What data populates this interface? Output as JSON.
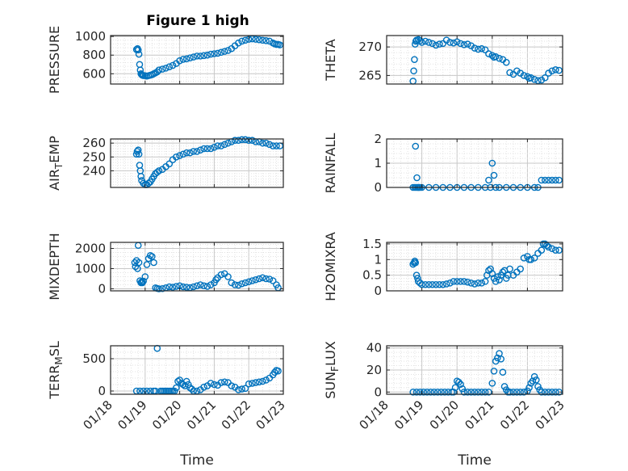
{
  "figure": {
    "title": "Figure 1 high",
    "marker_color": "#0072BD",
    "axes_color": "#262626",
    "grid_color": "#d9d9d9"
  },
  "chart_data": [
    {
      "type": "scatter",
      "ylabel": "PRESSURE",
      "xlabel": "",
      "title": "Figure 1 high",
      "xlim": [
        0,
        5
      ],
      "ylim": [
        490,
        1010
      ],
      "yticks": [
        600,
        800,
        1000
      ],
      "xtick_labels": [],
      "grid": true,
      "x": [
        0.75,
        0.78,
        0.8,
        0.82,
        0.84,
        0.86,
        0.88,
        0.9,
        0.92,
        0.95,
        1.0,
        1.05,
        1.1,
        1.15,
        1.2,
        1.25,
        1.3,
        1.35,
        1.4,
        1.5,
        1.6,
        1.7,
        1.8,
        1.9,
        2.0,
        2.1,
        2.2,
        2.3,
        2.4,
        2.5,
        2.6,
        2.7,
        2.8,
        2.9,
        3.0,
        3.1,
        3.2,
        3.3,
        3.4,
        3.5,
        3.6,
        3.7,
        3.8,
        3.9,
        4.0,
        4.1,
        4.2,
        4.3,
        4.4,
        4.5,
        4.6,
        4.7,
        4.75,
        4.8,
        4.85,
        4.9
      ],
      "y": [
        860,
        870,
        855,
        810,
        700,
        640,
        600,
        590,
        585,
        580,
        580,
        575,
        580,
        585,
        590,
        600,
        610,
        620,
        640,
        650,
        660,
        675,
        690,
        710,
        740,
        755,
        760,
        770,
        780,
        790,
        790,
        795,
        800,
        810,
        815,
        820,
        830,
        840,
        850,
        870,
        900,
        930,
        950,
        960,
        970,
        975,
        970,
        965,
        960,
        955,
        950,
        930,
        920,
        915,
        915,
        910
      ]
    },
    {
      "type": "scatter",
      "ylabel": "THETA",
      "xlabel": "",
      "xlim": [
        0,
        5
      ],
      "ylim": [
        263.5,
        272
      ],
      "yticks": [
        265,
        270
      ],
      "xtick_labels": [],
      "grid": true,
      "x": [
        0.75,
        0.77,
        0.79,
        0.81,
        0.83,
        0.85,
        0.9,
        0.95,
        1.0,
        1.1,
        1.2,
        1.3,
        1.4,
        1.5,
        1.6,
        1.7,
        1.8,
        1.9,
        2.0,
        2.1,
        2.2,
        2.3,
        2.4,
        2.5,
        2.6,
        2.7,
        2.8,
        2.9,
        3.0,
        3.05,
        3.1,
        3.2,
        3.3,
        3.4,
        3.5,
        3.6,
        3.7,
        3.8,
        3.9,
        4.0,
        4.05,
        4.1,
        4.2,
        4.3,
        4.4,
        4.5,
        4.6,
        4.7,
        4.8,
        4.9
      ],
      "y": [
        264,
        265.8,
        267.8,
        270.5,
        271,
        271.2,
        271.3,
        271.1,
        270.8,
        271,
        270.8,
        270.6,
        270.3,
        270.5,
        270.6,
        271.2,
        270.8,
        270.7,
        270.9,
        270.6,
        270.4,
        270.5,
        270.2,
        269.8,
        269.6,
        269.7,
        269.5,
        268.8,
        268.5,
        268.2,
        268.3,
        268,
        267.8,
        267.3,
        265.5,
        265.2,
        265.8,
        265.4,
        265,
        264.8,
        264.5,
        264.6,
        264.3,
        264.1,
        264.2,
        264.6,
        265.4,
        265.8,
        266,
        265.9
      ]
    },
    {
      "type": "scatter",
      "ylabel": "AIR_TEMP",
      "xlabel": "",
      "xlim": [
        0,
        5
      ],
      "ylim": [
        228,
        263
      ],
      "yticks": [
        240,
        250,
        260
      ],
      "xtick_labels": [],
      "grid": true,
      "x": [
        0.75,
        0.77,
        0.8,
        0.82,
        0.84,
        0.86,
        0.88,
        0.9,
        0.95,
        1.0,
        1.05,
        1.1,
        1.15,
        1.2,
        1.25,
        1.3,
        1.35,
        1.4,
        1.5,
        1.6,
        1.7,
        1.8,
        1.9,
        2.0,
        2.1,
        2.2,
        2.3,
        2.4,
        2.5,
        2.6,
        2.7,
        2.8,
        2.9,
        3.0,
        3.1,
        3.2,
        3.3,
        3.4,
        3.5,
        3.6,
        3.7,
        3.8,
        3.9,
        4.0,
        4.1,
        4.2,
        4.3,
        4.4,
        4.5,
        4.6,
        4.7,
        4.8,
        4.9
      ],
      "y": [
        252,
        254,
        255,
        252,
        244,
        240,
        236,
        233,
        231,
        230,
        230,
        231,
        232,
        234,
        236,
        238,
        239,
        240,
        241,
        243,
        245,
        248,
        250,
        251,
        252,
        253,
        253,
        254,
        254,
        255,
        256,
        256,
        256,
        257,
        258,
        258,
        259,
        260,
        261,
        262,
        262,
        262.5,
        262.5,
        262,
        262,
        261,
        261,
        260,
        260,
        259,
        258,
        258,
        258
      ]
    },
    {
      "type": "scatter",
      "ylabel": "RAINFALL",
      "xlabel": "",
      "xlim": [
        0,
        5
      ],
      "ylim": [
        0,
        2
      ],
      "yticks": [
        0,
        1,
        2
      ],
      "xtick_labels": [],
      "grid": true,
      "x": [
        0.75,
        0.8,
        0.82,
        0.84,
        0.86,
        0.88,
        0.9,
        0.92,
        0.95,
        1.0,
        1.2,
        1.4,
        1.6,
        1.8,
        2.0,
        2.2,
        2.4,
        2.6,
        2.8,
        2.9,
        2.95,
        3.0,
        3.05,
        3.1,
        3.2,
        3.4,
        3.6,
        3.8,
        4.0,
        4.2,
        4.3,
        4.4,
        4.5,
        4.6,
        4.7,
        4.8,
        4.9
      ],
      "y": [
        0,
        0,
        1.7,
        0,
        0.4,
        0,
        0,
        0,
        0,
        0,
        0,
        0,
        0,
        0,
        0,
        0,
        0,
        0,
        0,
        0.3,
        0,
        1.0,
        0.5,
        0,
        0,
        0,
        0,
        0,
        0,
        0,
        0,
        0.3,
        0.3,
        0.3,
        0.3,
        0.3,
        0.3
      ]
    },
    {
      "type": "scatter",
      "ylabel": "MIXDEPTH",
      "xlabel": "",
      "xlim": [
        0,
        5
      ],
      "ylim": [
        -100,
        2300
      ],
      "yticks": [
        0,
        1000,
        2000
      ],
      "xtick_labels": [],
      "grid": true,
      "x": [
        0.7,
        0.72,
        0.75,
        0.78,
        0.8,
        0.82,
        0.85,
        0.88,
        0.9,
        0.92,
        0.95,
        1.0,
        1.05,
        1.1,
        1.15,
        1.2,
        1.25,
        1.3,
        1.35,
        1.4,
        1.5,
        1.6,
        1.7,
        1.8,
        1.9,
        2.0,
        2.1,
        2.2,
        2.3,
        2.4,
        2.5,
        2.6,
        2.7,
        2.8,
        2.9,
        3.0,
        3.05,
        3.1,
        3.2,
        3.3,
        3.4,
        3.5,
        3.6,
        3.7,
        3.8,
        3.9,
        4.0,
        4.1,
        4.2,
        4.3,
        4.4,
        4.5,
        4.6,
        4.7,
        4.8,
        4.85
      ],
      "y": [
        1300,
        1100,
        1400,
        1000,
        2150,
        1300,
        400,
        300,
        350,
        300,
        380,
        600,
        1200,
        1500,
        1650,
        1600,
        1300,
        50,
        20,
        0,
        10,
        50,
        100,
        80,
        120,
        150,
        100,
        80,
        60,
        100,
        150,
        200,
        150,
        120,
        200,
        300,
        450,
        550,
        700,
        750,
        600,
        300,
        200,
        180,
        250,
        300,
        350,
        400,
        450,
        500,
        550,
        500,
        480,
        400,
        200,
        50
      ]
    },
    {
      "type": "scatter",
      "ylabel": "H2OMIXRA",
      "xlabel": "",
      "xlim": [
        0,
        5
      ],
      "ylim": [
        0,
        1.55
      ],
      "yticks": [
        0,
        0.5,
        1,
        1.5
      ],
      "xtick_labels": [],
      "grid": true,
      "x": [
        0.75,
        0.78,
        0.8,
        0.82,
        0.85,
        0.88,
        0.9,
        0.95,
        1.0,
        1.1,
        1.2,
        1.3,
        1.4,
        1.5,
        1.6,
        1.7,
        1.8,
        1.9,
        2.0,
        2.1,
        2.2,
        2.3,
        2.4,
        2.5,
        2.6,
        2.7,
        2.8,
        2.85,
        2.9,
        2.95,
        3.0,
        3.05,
        3.1,
        3.15,
        3.2,
        3.25,
        3.3,
        3.35,
        3.4,
        3.45,
        3.5,
        3.6,
        3.7,
        3.8,
        3.9,
        4.0,
        4.05,
        4.1,
        4.2,
        4.3,
        4.4,
        4.45,
        4.5,
        4.55,
        4.6,
        4.7,
        4.8,
        4.9
      ],
      "y": [
        0.85,
        0.9,
        0.95,
        0.9,
        0.5,
        0.4,
        0.3,
        0.25,
        0.2,
        0.2,
        0.2,
        0.2,
        0.2,
        0.2,
        0.2,
        0.22,
        0.25,
        0.3,
        0.3,
        0.3,
        0.3,
        0.28,
        0.25,
        0.22,
        0.25,
        0.25,
        0.3,
        0.5,
        0.65,
        0.7,
        0.55,
        0.4,
        0.3,
        0.45,
        0.35,
        0.5,
        0.6,
        0.65,
        0.4,
        0.5,
        0.7,
        0.5,
        0.6,
        0.7,
        1.05,
        1.1,
        1.0,
        1.0,
        1.05,
        1.2,
        1.3,
        1.5,
        1.5,
        1.45,
        1.4,
        1.35,
        1.3,
        1.3
      ]
    },
    {
      "type": "scatter",
      "ylabel": "TERR_MSL",
      "xlabel": "Time",
      "xlim": [
        0,
        5
      ],
      "ylim": [
        -50,
        700
      ],
      "yticks": [
        0,
        500
      ],
      "xtick_labels": [
        "01/18",
        "01/19",
        "01/20",
        "01/21",
        "01/22",
        "01/23"
      ],
      "grid": true,
      "x": [
        0.75,
        0.85,
        0.95,
        1.05,
        1.15,
        1.25,
        1.3,
        1.35,
        1.45,
        1.5,
        1.55,
        1.6,
        1.65,
        1.7,
        1.75,
        1.8,
        1.85,
        1.9,
        1.95,
        2.0,
        2.05,
        2.1,
        2.15,
        2.2,
        2.25,
        2.3,
        2.35,
        2.4,
        2.5,
        2.6,
        2.7,
        2.8,
        2.9,
        3.0,
        3.1,
        3.2,
        3.3,
        3.4,
        3.5,
        3.6,
        3.7,
        3.8,
        3.9,
        4.0,
        4.1,
        4.2,
        4.3,
        4.4,
        4.5,
        4.6,
        4.7,
        4.75,
        4.8,
        4.85
      ],
      "y": [
        0,
        0,
        0,
        0,
        0,
        0,
        0,
        660,
        0,
        0,
        0,
        0,
        0,
        0,
        0,
        0,
        0,
        50,
        150,
        170,
        120,
        100,
        80,
        150,
        100,
        50,
        30,
        0,
        0,
        20,
        60,
        80,
        120,
        100,
        90,
        130,
        140,
        130,
        80,
        60,
        20,
        30,
        40,
        110,
        120,
        130,
        140,
        150,
        170,
        200,
        250,
        290,
        320,
        310
      ]
    },
    {
      "type": "scatter",
      "ylabel": "SUN_FLUX",
      "xlabel": "Time",
      "xlim": [
        0,
        5
      ],
      "ylim": [
        -2,
        42
      ],
      "yticks": [
        0,
        20,
        40
      ],
      "xtick_labels": [
        "01/18",
        "01/19",
        "01/20",
        "01/21",
        "01/22",
        "01/23"
      ],
      "grid": true,
      "x": [
        0.75,
        0.85,
        0.95,
        1.05,
        1.15,
        1.25,
        1.35,
        1.45,
        1.55,
        1.65,
        1.75,
        1.85,
        1.9,
        1.95,
        2.0,
        2.05,
        2.1,
        2.15,
        2.2,
        2.3,
        2.4,
        2.5,
        2.6,
        2.7,
        2.8,
        2.9,
        3.0,
        3.05,
        3.1,
        3.15,
        3.2,
        3.25,
        3.3,
        3.35,
        3.4,
        3.45,
        3.5,
        3.6,
        3.7,
        3.8,
        3.9,
        4.0,
        4.05,
        4.1,
        4.15,
        4.2,
        4.25,
        4.3,
        4.35,
        4.4,
        4.5,
        4.6,
        4.7,
        4.8,
        4.9
      ],
      "y": [
        0,
        0,
        0,
        0,
        0,
        0,
        0,
        0,
        0,
        0,
        0,
        0,
        0,
        4,
        10,
        9,
        7,
        3,
        0,
        0,
        0,
        0,
        0,
        0,
        0,
        0,
        8,
        19,
        28,
        31,
        35,
        30,
        18,
        5,
        2,
        0,
        0,
        0,
        0,
        0,
        0,
        1,
        4,
        8,
        10,
        14,
        11,
        5,
        2,
        0,
        0,
        0,
        0,
        0,
        0
      ]
    }
  ]
}
